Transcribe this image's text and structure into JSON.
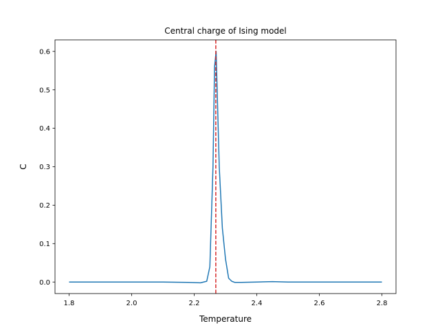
{
  "chart_data": {
    "type": "line",
    "title": "Central charge of Ising model",
    "xlabel": "Temperature",
    "ylabel": "C",
    "xlim": [
      1.755,
      2.845
    ],
    "ylim": [
      -0.03,
      0.63
    ],
    "grid": false,
    "xticks": [
      1.8,
      2.0,
      2.2,
      2.4,
      2.6,
      2.8
    ],
    "xtick_labels": [
      "1.8",
      "2.0",
      "2.2",
      "2.4",
      "2.6",
      "2.8"
    ],
    "yticks": [
      0.0,
      0.1,
      0.2,
      0.3,
      0.4,
      0.5,
      0.6
    ],
    "ytick_labels": [
      "0.0",
      "0.1",
      "0.2",
      "0.3",
      "0.4",
      "0.5",
      "0.6"
    ],
    "series": [
      {
        "color": "#1f77b4",
        "x": [
          1.8,
          1.9,
          2.0,
          2.1,
          2.18,
          2.22,
          2.24,
          2.25,
          2.26,
          2.265,
          2.27,
          2.275,
          2.28,
          2.29,
          2.3,
          2.31,
          2.32,
          2.33,
          2.35,
          2.4,
          2.45,
          2.5,
          2.6,
          2.7,
          2.8
        ],
        "y": [
          0.0,
          0.0,
          0.0,
          0.0,
          -0.001,
          -0.002,
          0.002,
          0.04,
          0.3,
          0.56,
          0.6,
          0.45,
          0.3,
          0.14,
          0.06,
          0.01,
          0.002,
          -0.001,
          -0.001,
          0.0,
          0.001,
          0.0,
          0.0,
          0.0,
          0.0
        ]
      }
    ],
    "reference_lines": [
      {
        "orientation": "vertical",
        "x": 2.269,
        "color": "#d62728",
        "style": "dashed"
      }
    ]
  }
}
